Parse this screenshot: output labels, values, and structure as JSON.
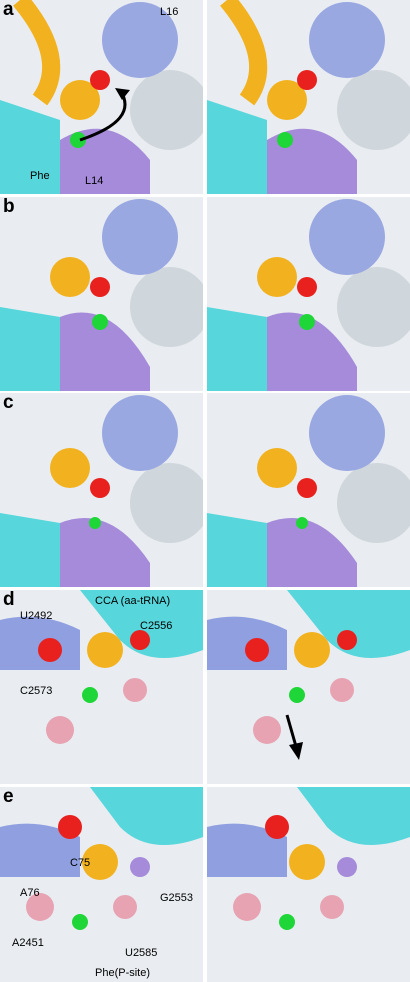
{
  "panels": [
    {
      "letter": "a",
      "labels": {
        "l16": "L16",
        "phe": "Phe",
        "l14": "L14"
      }
    },
    {
      "letter": "b"
    },
    {
      "letter": "c"
    },
    {
      "letter": "d",
      "labels": {
        "u2492": "U2492",
        "cca": "CCA (aa-tRNA)",
        "c2556": "C2556",
        "c2573": "C2573"
      }
    },
    {
      "letter": "e",
      "labels": {
        "c75": "C75",
        "a76": "A76",
        "g2553": "G2553",
        "a2451": "A2451",
        "u2585": "U2585",
        "phe_p": "Phe(P-site)"
      }
    }
  ],
  "colors": {
    "trna": "#f2b21f",
    "rna_blue": "#8f9fe0",
    "cyan": "#57d6db",
    "purple": "#a58bd9",
    "red": "#e8201e",
    "green": "#1fd638",
    "pink": "#e7a3b2",
    "grey": "#cfd6dc"
  }
}
